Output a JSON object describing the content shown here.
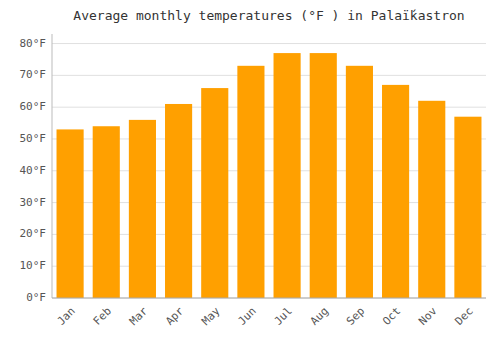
{
  "chart_data": {
    "type": "bar",
    "title": "Average monthly temperatures (°F ) in Palaḯkastron",
    "categories": [
      "Jan",
      "Feb",
      "Mar",
      "Apr",
      "May",
      "Jun",
      "Jul",
      "Aug",
      "Sep",
      "Oct",
      "Nov",
      "Dec"
    ],
    "values": [
      53,
      54,
      56,
      61,
      66,
      73,
      77,
      77,
      73,
      67,
      62,
      57
    ],
    "color": "#FFA000",
    "ylim": [
      0,
      83
    ],
    "yticks": [
      {
        "value": 0,
        "label": "0°F"
      },
      {
        "value": 10,
        "label": "10°F"
      },
      {
        "value": 20,
        "label": "20°F"
      },
      {
        "value": 30,
        "label": "30°F"
      },
      {
        "value": 40,
        "label": "40°F"
      },
      {
        "value": 50,
        "label": "50°F"
      },
      {
        "value": 60,
        "label": "60°F"
      },
      {
        "value": 70,
        "label": "70°F"
      },
      {
        "value": 80,
        "label": "80°F"
      }
    ],
    "grid": true
  }
}
